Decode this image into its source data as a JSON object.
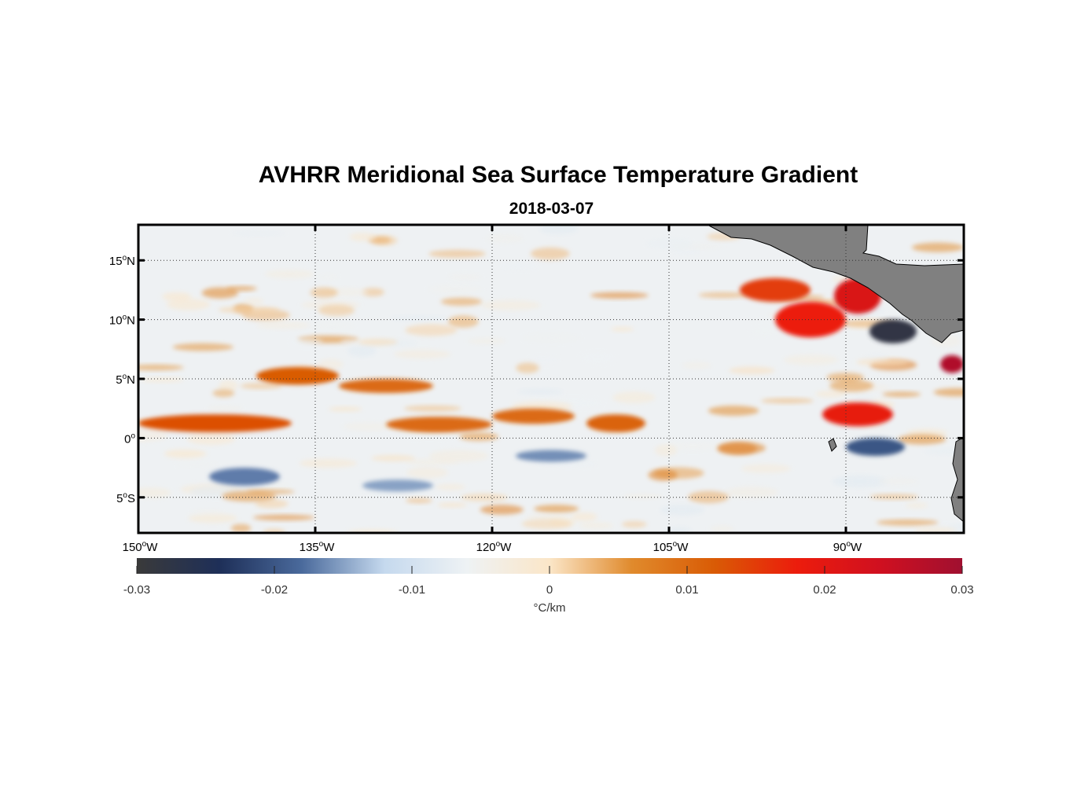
{
  "title": "AVHRR Meridional Sea Surface Temperature Gradient",
  "subtitle": "2018-03-07",
  "chart_data": {
    "type": "heatmap",
    "title": "AVHRR Meridional Sea Surface Temperature Gradient",
    "subtitle": "2018-03-07",
    "lon_range": [
      -150,
      -80
    ],
    "lat_range": [
      -8,
      18
    ],
    "grid": true,
    "x_ticks": [
      {
        "value": -150,
        "deg": "150",
        "hemi": "W"
      },
      {
        "value": -135,
        "deg": "135",
        "hemi": "W"
      },
      {
        "value": -120,
        "deg": "120",
        "hemi": "W"
      },
      {
        "value": -105,
        "deg": "105",
        "hemi": "W"
      },
      {
        "value": -90,
        "deg": "90",
        "hemi": "W"
      }
    ],
    "y_ticks": [
      {
        "value": 15,
        "deg": "15",
        "hemi": "N"
      },
      {
        "value": 10,
        "deg": "10",
        "hemi": "N"
      },
      {
        "value": 5,
        "deg": "5",
        "hemi": "N"
      },
      {
        "value": 0,
        "deg": "0",
        "hemi": ""
      },
      {
        "value": -5,
        "deg": "5",
        "hemi": "S"
      }
    ],
    "colorbar": {
      "range": [
        -0.03,
        0.03
      ],
      "ticks": [
        "-0.03",
        "-0.02",
        "-0.01",
        "0",
        "0.01",
        "0.02",
        "0.03"
      ],
      "tick_values": [
        -0.03,
        -0.02,
        -0.01,
        0,
        0.01,
        0.02,
        0.03
      ],
      "label": "°C/km",
      "colors": [
        "#3a3a3a",
        "#1e2f58",
        "#4a6a9c",
        "#c5d9ee",
        "#eef2f4",
        "#fbe6c8",
        "#e08a2c",
        "#d95b05",
        "#ec1c0c",
        "#d01020",
        "#a01030"
      ]
    },
    "land_color": "#808080",
    "features": [
      {
        "kind": "positive",
        "lon": [
          -150,
          -137
        ],
        "lat": [
          0.5,
          2.0
        ],
        "value": 0.013
      },
      {
        "kind": "positive",
        "lon": [
          -140,
          -133
        ],
        "lat": [
          4.5,
          6.0
        ],
        "value": 0.012
      },
      {
        "kind": "positive",
        "lon": [
          -133,
          -125
        ],
        "lat": [
          3.8,
          5.0
        ],
        "value": 0.01
      },
      {
        "kind": "positive",
        "lon": [
          -129,
          -120
        ],
        "lat": [
          0.5,
          1.8
        ],
        "value": 0.01
      },
      {
        "kind": "positive",
        "lon": [
          -120,
          -113
        ],
        "lat": [
          1.2,
          2.5
        ],
        "value": 0.01
      },
      {
        "kind": "positive",
        "lon": [
          -112,
          -107
        ],
        "lat": [
          0.5,
          2.0
        ],
        "value": 0.011
      },
      {
        "kind": "positive",
        "lon": [
          -99,
          -93
        ],
        "lat": [
          11.5,
          13.5
        ],
        "value": 0.015
      },
      {
        "kind": "positive",
        "lon": [
          -96,
          -90
        ],
        "lat": [
          8.5,
          11.5
        ],
        "value": 0.018
      },
      {
        "kind": "positive",
        "lon": [
          -91,
          -87
        ],
        "lat": [
          10.5,
          13.5
        ],
        "value": 0.022
      },
      {
        "kind": "positive",
        "lon": [
          -92,
          -86
        ],
        "lat": [
          1.0,
          3.0
        ],
        "value": 0.019
      },
      {
        "kind": "positive",
        "lon": [
          -82,
          -80
        ],
        "lat": [
          5.5,
          7.0
        ],
        "value": 0.028
      },
      {
        "kind": "negative",
        "lon": [
          -144,
          -138
        ],
        "lat": [
          -4.0,
          -2.5
        ],
        "value": -0.017
      },
      {
        "kind": "negative",
        "lon": [
          -131,
          -125
        ],
        "lat": [
          -4.5,
          -3.5
        ],
        "value": -0.015
      },
      {
        "kind": "negative",
        "lon": [
          -118,
          -112
        ],
        "lat": [
          -2.0,
          -1.0
        ],
        "value": -0.016
      },
      {
        "kind": "negative",
        "lon": [
          -88,
          -84
        ],
        "lat": [
          8.0,
          10.0
        ],
        "value": -0.028
      },
      {
        "kind": "negative",
        "lon": [
          -90,
          -85
        ],
        "lat": [
          -1.5,
          0.0
        ],
        "value": -0.02
      }
    ]
  }
}
